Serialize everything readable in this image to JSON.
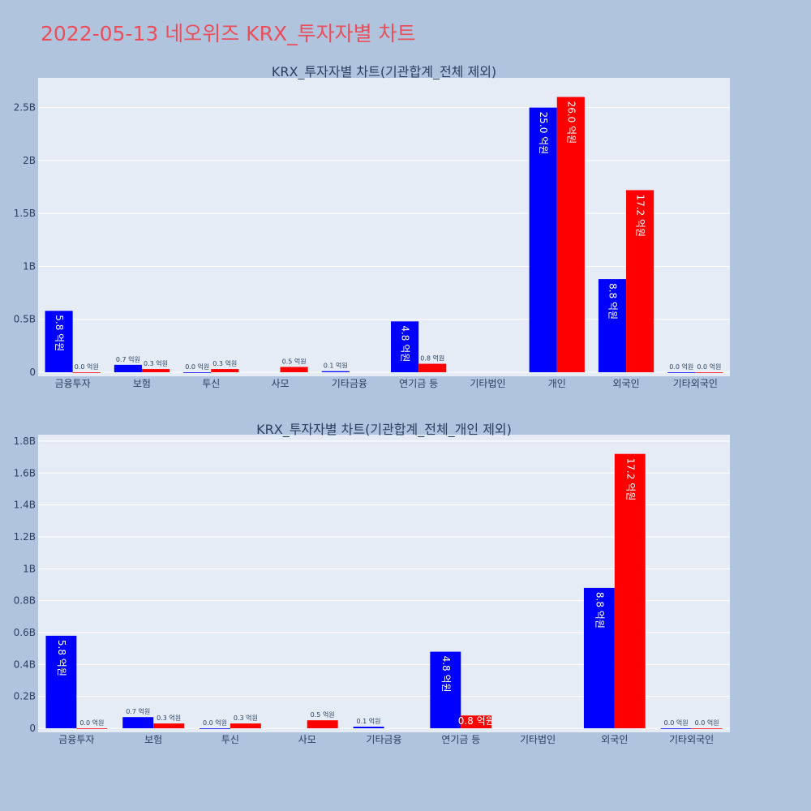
{
  "title": "2022-05-13 네오위즈 KRX_투자자별 차트",
  "colors": {
    "buy": "#0000ff",
    "sell": "#ff0000",
    "plot_bg": "#e5ecf6",
    "page_bg": "#b0c4de",
    "title": "#ea4e5b"
  },
  "chart_data": [
    {
      "type": "bar",
      "title": "KRX_투자자별 차트(기관합계_전체 제외)",
      "categories": [
        "금융투자",
        "보험",
        "투신",
        "사모",
        "기타금융",
        "연기금 등",
        "기타법인",
        "개인",
        "외국인",
        "기타외국인"
      ],
      "series": [
        {
          "values": [
            580000000,
            70000000,
            0,
            null,
            10000000,
            480000000,
            null,
            2500000000,
            880000000,
            0
          ],
          "labels": [
            "5.8 억원",
            "0.7 억원",
            "0.0 억원",
            "",
            "0.1 억원",
            "4.8 억원",
            "",
            "25.0 억원",
            "8.8 억원",
            "0.0 억원"
          ]
        },
        {
          "values": [
            0,
            30000000,
            30000000,
            50000000,
            null,
            80000000,
            null,
            2600000000,
            1720000000,
            0
          ],
          "labels": [
            "0.0 억원",
            "0.3 억원",
            "0.3 억원",
            "0.5 억원",
            "",
            "0.8 억원",
            "",
            "26.0 억원",
            "17.2 억원",
            "0.0 억원"
          ]
        }
      ],
      "ylim": [
        0,
        2750000000
      ],
      "yticks": [
        0,
        500000000,
        1000000000,
        1500000000,
        2000000000,
        2500000000
      ],
      "ytick_labels": [
        "0",
        "0.5B",
        "1B",
        "1.5B",
        "2B",
        "2.5B"
      ],
      "grid": true
    },
    {
      "type": "bar",
      "title": "KRX_투자자별 차트(기관합계_전체_개인 제외)",
      "categories": [
        "금융투자",
        "보험",
        "투신",
        "사모",
        "기타금융",
        "연기금 등",
        "기타법인",
        "외국인",
        "기타외국인"
      ],
      "series": [
        {
          "values": [
            580000000,
            70000000,
            0,
            null,
            10000000,
            480000000,
            null,
            880000000,
            0
          ],
          "labels": [
            "5.8 억원",
            "0.7 억원",
            "0.0 억원",
            "",
            "0.1 억원",
            "4.8 억원",
            "",
            "8.8 억원",
            "0.0 억원"
          ]
        },
        {
          "values": [
            0,
            30000000,
            30000000,
            50000000,
            null,
            80000000,
            null,
            1720000000,
            0
          ],
          "labels": [
            "0.0 억원",
            "0.3 억원",
            "0.3 억원",
            "0.5 억원",
            "",
            "0.8 억원",
            "",
            "17.2 억원",
            "0.0 억원"
          ]
        }
      ],
      "ylim": [
        0,
        1820000000
      ],
      "yticks": [
        0,
        200000000,
        400000000,
        600000000,
        800000000,
        1000000000,
        1200000000,
        1400000000,
        1600000000,
        1800000000
      ],
      "ytick_labels": [
        "0",
        "0.2B",
        "0.4B",
        "0.6B",
        "0.8B",
        "1B",
        "1.2B",
        "1.4B",
        "1.6B",
        "1.8B"
      ],
      "grid": true
    }
  ]
}
